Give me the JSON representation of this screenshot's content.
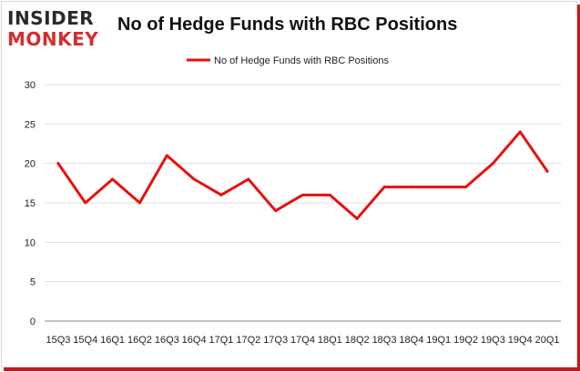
{
  "logo": {
    "line1": "INSIDER",
    "line2": "MONKEY"
  },
  "chart_data": {
    "type": "line",
    "title": "No of Hedge Funds with RBC Positions",
    "xlabel": "",
    "ylabel": "",
    "categories": [
      "15Q3",
      "15Q4",
      "16Q1",
      "16Q2",
      "16Q3",
      "16Q4",
      "17Q1",
      "17Q2",
      "17Q3",
      "17Q4",
      "18Q1",
      "18Q2",
      "18Q3",
      "18Q4",
      "19Q1",
      "19Q2",
      "19Q3",
      "19Q4",
      "20Q1"
    ],
    "series": [
      {
        "name": "No of Hedge Funds with RBC Positions",
        "values": [
          20,
          15,
          18,
          15,
          21,
          18,
          16,
          18,
          14,
          16,
          16,
          13,
          17,
          17,
          17,
          17,
          20,
          24,
          19
        ]
      }
    ],
    "ylim": [
      0,
      30
    ],
    "yticks": [
      0,
      5,
      10,
      15,
      20,
      25,
      30
    ],
    "grid": true,
    "legend": "top",
    "colors": {
      "line": "#e8100b",
      "grid": "#dddddd",
      "axis": "#888888"
    }
  }
}
